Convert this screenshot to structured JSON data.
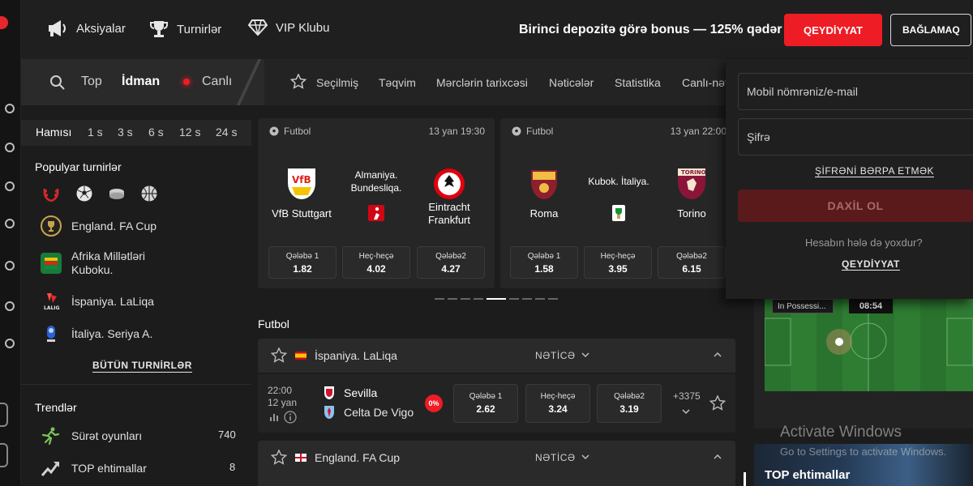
{
  "header": {
    "nav": [
      {
        "label": "Aksiyalar",
        "icon": "megaphone-icon"
      },
      {
        "label": "Turnirlər",
        "icon": "trophy-icon"
      },
      {
        "label": "VIP Klubu",
        "icon": "diamond-icon"
      }
    ],
    "promo_text": "Birinci depozitə görə bonus — 125% qədər",
    "register_label": "QEYDİYYAT",
    "login_label": "BAĞLAMAQ"
  },
  "sports_tabs": {
    "items": [
      {
        "label": "Top",
        "icon": "search-icon"
      },
      {
        "label": "İdman",
        "active": true
      },
      {
        "label": "Canlı",
        "icon": "live-dot-icon"
      }
    ],
    "sub_items": [
      "Seçilmiş",
      "Təqvim",
      "Mərclərin tarixcəsi",
      "Nəticələr",
      "Statistika",
      "Canlı-nət"
    ]
  },
  "sidebar": {
    "time_filters": [
      "Hamısı",
      "1 s",
      "3 s",
      "6 s",
      "12 s",
      "24 s"
    ],
    "popular_title": "Populyar turnirlər",
    "sport_icons": [
      "laurel-icon",
      "football-icon",
      "ice-hockey-icon",
      "basketball-icon"
    ],
    "tournaments": [
      {
        "label": "England. FA Cup",
        "icon": "fa-cup-logo-icon"
      },
      {
        "label": "Afrika Millətləri Kuboku.",
        "icon": "afcon-logo-icon"
      },
      {
        "label": "İspaniya. LaLiqa",
        "icon": "laliga-logo-icon"
      },
      {
        "label": "İtaliya. Seriya A.",
        "icon": "serie-a-logo-icon"
      }
    ],
    "all_tournaments": "BÜTÜN TURNİRLƏR",
    "trends_title": "Trendlər",
    "trends": [
      {
        "label": "Sürət oyunları",
        "count": "740",
        "icon": "runner-icon"
      },
      {
        "label": "TOP ehtimallar",
        "count": "8",
        "icon": "trend-up-icon"
      }
    ]
  },
  "featured": [
    {
      "sport": "Futbol",
      "time": "13 yan 19:30",
      "home": "VfB Stuttgart",
      "away": "Eintracht Frankfurt",
      "league": "Almaniya. Bundesliqa.",
      "odds": [
        {
          "label": "Qələbə 1",
          "value": "1.82"
        },
        {
          "label": "Heç-heçə",
          "value": "4.02"
        },
        {
          "label": "Qələbə2",
          "value": "4.27"
        }
      ],
      "colors": {
        "home": "#e32219",
        "away": "#e1000f"
      }
    },
    {
      "sport": "Futbol",
      "time": "13 yan 22:00",
      "home": "Roma",
      "away": "Torino",
      "league": "Kubok. İtaliya.",
      "odds": [
        {
          "label": "Qələbə 1",
          "value": "1.58"
        },
        {
          "label": "Heç-heçə",
          "value": "3.95"
        },
        {
          "label": "Qələbə2",
          "value": "6.15"
        }
      ],
      "colors": {
        "home": "#8e1f2f",
        "away": "#8a1538"
      }
    }
  ],
  "main": {
    "section_title": "Futbol",
    "leagues": [
      {
        "name": "İspaniya. LaLiqa",
        "result_label": "NƏTİCƏ",
        "match": {
          "time": "22:00",
          "date": "12 yan",
          "home": "Sevilla",
          "away": "Celta De Vigo",
          "badge": "0%",
          "odds": [
            {
              "label": "Qələbə 1",
              "value": "2.62"
            },
            {
              "label": "Heç-heçə",
              "value": "3.24"
            },
            {
              "label": "Qələbə2",
              "value": "3.19"
            }
          ],
          "more": "+3375"
        }
      },
      {
        "name": "England. FA Cup",
        "result_label": "NƏTİCƏ"
      }
    ]
  },
  "login_form": {
    "login_placeholder": "Mobil nömrəniz/e-mail",
    "password_placeholder": "Şifrə",
    "forgot_label": "ŞİFRƏNİ BƏRPA ETMƏK",
    "submit_label": "DAXİL OL",
    "no_account_text": "Hesabın hələ də yoxdur?",
    "register_link": "QEYDİYYAT"
  },
  "live_widget": {
    "possession_label": "In Possessi...",
    "clock": "08:54"
  },
  "overlay": {
    "activate_title": "Activate Windows",
    "activate_sub": "Go to Settings to activate Windows.",
    "banner_title": "TOP ehtimallar"
  },
  "colors": {
    "accent": "#ee1c25",
    "bg": "#1c1c1c",
    "panel": "#262626"
  }
}
